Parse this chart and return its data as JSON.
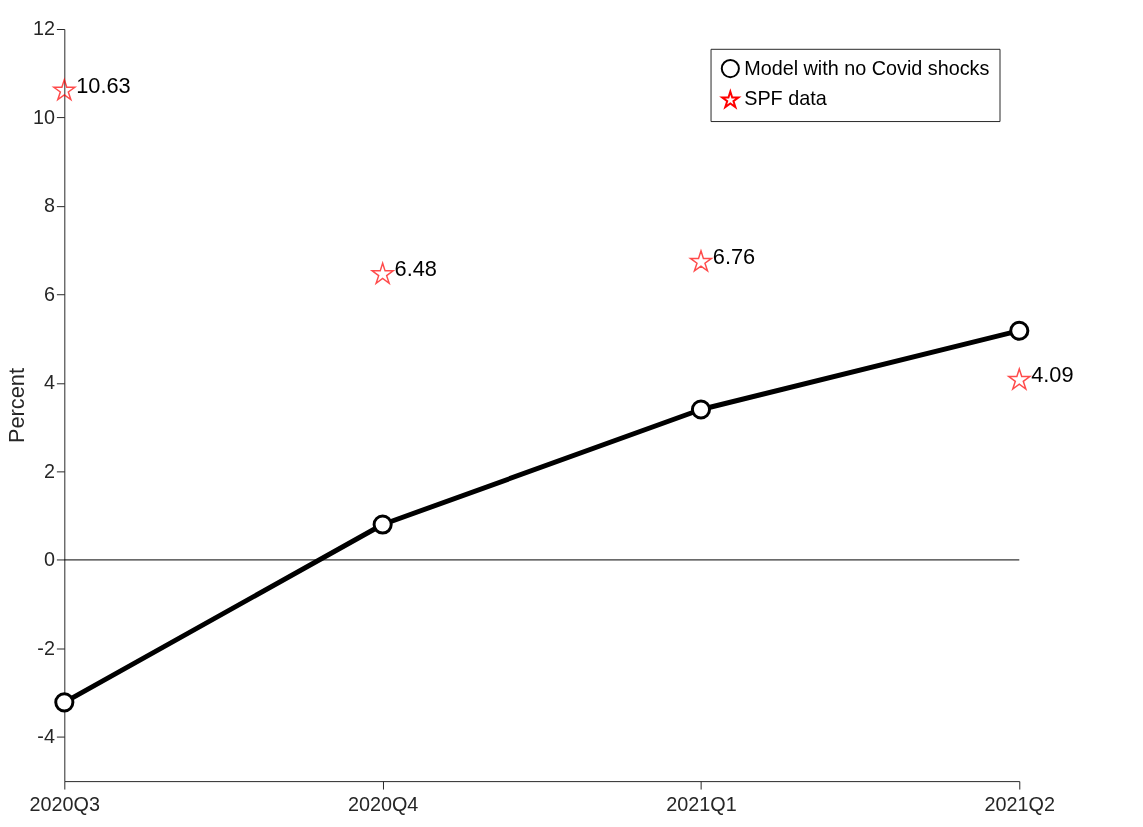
{
  "chart_data": {
    "type": "line",
    "ylabel": "Percent",
    "categories": [
      "2020Q3",
      "2020Q4",
      "2021Q1",
      "2021Q2"
    ],
    "series": [
      {
        "name": "Model with no Covid shocks",
        "color": "#000000",
        "marker": "circle",
        "values": [
          -3.22,
          0.8,
          3.4,
          5.18
        ]
      },
      {
        "name": "SPF data",
        "color": "#ff0000",
        "type": "scatter",
        "marker": "star",
        "data_labels": true,
        "values": [
          10.63,
          6.48,
          6.76,
          4.09
        ]
      }
    ],
    "ylim": [
      -5,
      12
    ],
    "yticks": [
      -4,
      -2,
      0,
      2,
      4,
      6,
      8,
      10,
      12
    ],
    "ref_lines": [
      {
        "axis": "y",
        "value": 0,
        "color": "#000000"
      }
    ],
    "grid": false,
    "legend": "top right",
    "line_style": "solid"
  }
}
